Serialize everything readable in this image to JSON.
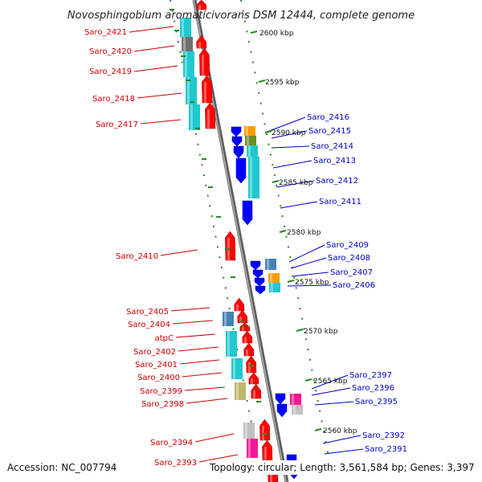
{
  "title": "Novosphingobium aromaticivorans DSM 12444, complete genome",
  "footer": {
    "accession": "Accession: NC_007794",
    "summary": "Topology: circular; Length: 3,561,584 bp; Genes: 3,397"
  },
  "colors": {
    "forward": "#ff0000",
    "reverse": "#0000ff",
    "backbone": "#808080",
    "ticks": "#228b22",
    "label_red": "#cc0000",
    "label_blue": "#0000cc"
  },
  "ticks": [
    "2600 kbp",
    "2595 kbp",
    "2590 kbp",
    "2585 kbp",
    "2580 kbp",
    "2575 kbp",
    "2570 kbp",
    "2565 kbp",
    "2560 kbp"
  ],
  "forward_labels": [
    "Saro_2421",
    "Saro_2420",
    "Saro_2419",
    "Saro_2418",
    "Saro_2417",
    "Saro_2410",
    "Saro_2405",
    "Saro_2404",
    "atpC",
    "Saro_2402",
    "Saro_2401",
    "Saro_2400",
    "Saro_2399",
    "Saro_2398",
    "Saro_2394",
    "Saro_2393"
  ],
  "reverse_labels": [
    "Saro_2416",
    "Saro_2415",
    "Saro_2414",
    "Saro_2413",
    "Saro_2412",
    "Saro_2411",
    "Saro_2409",
    "Saro_2408",
    "Saro_2407",
    "Saro_2406",
    "Saro_2397",
    "Saro_2396",
    "Saro_2395",
    "Saro_2392",
    "Saro_2391"
  ]
}
